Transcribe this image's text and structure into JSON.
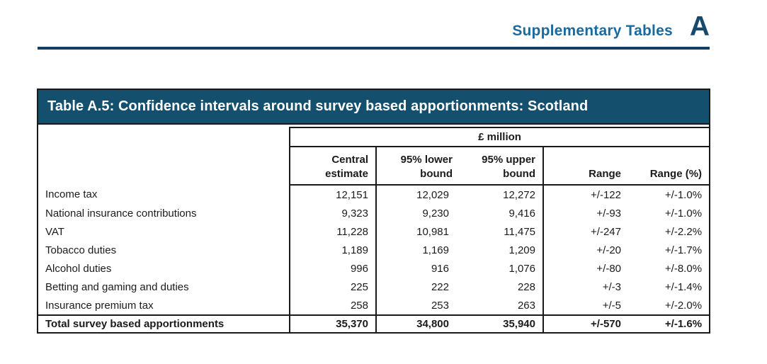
{
  "page_header": {
    "title": "Supplementary Tables",
    "section_letter": "A"
  },
  "table": {
    "title": "Table A.5: Confidence intervals around survey based apportionments: Scotland",
    "unit_label": "£ million",
    "headers": {
      "central": "Central\nestimate",
      "lower": "95% lower\nbound",
      "upper": "95% upper\nbound",
      "range": "Range",
      "range_pct": "Range (%)"
    },
    "rows": [
      {
        "label": "Income tax",
        "central": "12,151",
        "lower": "12,029",
        "upper": "12,272",
        "range": "+/-122",
        "range_pct": "+/-1.0%"
      },
      {
        "label": "National insurance contributions",
        "central": "9,323",
        "lower": "9,230",
        "upper": "9,416",
        "range": "+/-93",
        "range_pct": "+/-1.0%"
      },
      {
        "label": "VAT",
        "central": "11,228",
        "lower": "10,981",
        "upper": "11,475",
        "range": "+/-247",
        "range_pct": "+/-2.2%"
      },
      {
        "label": "Tobacco duties",
        "central": "1,189",
        "lower": "1,169",
        "upper": "1,209",
        "range": "+/-20",
        "range_pct": "+/-1.7%"
      },
      {
        "label": "Alcohol duties",
        "central": "996",
        "lower": "916",
        "upper": "1,076",
        "range": "+/-80",
        "range_pct": "+/-8.0%"
      },
      {
        "label": "Betting and gaming and duties",
        "central": "225",
        "lower": "222",
        "upper": "228",
        "range": "+/-3",
        "range_pct": "+/-1.4%"
      },
      {
        "label": "Insurance premium tax",
        "central": "258",
        "lower": "253",
        "upper": "263",
        "range": "+/-5",
        "range_pct": "+/-2.0%"
      }
    ],
    "total": {
      "label": "Total survey based apportionments",
      "central": "35,370",
      "lower": "34,800",
      "upper": "35,940",
      "range": "+/-570",
      "range_pct": "+/-1.6%"
    }
  },
  "colors": {
    "title_bar_bg": "#14506e",
    "header_title_text": "#1b6a9e",
    "section_letter_text": "#17486d",
    "header_rule": "#123f63",
    "table_border": "#1a1a1a",
    "body_text": "#1b1b1b",
    "table_title_text": "#ffffff"
  }
}
